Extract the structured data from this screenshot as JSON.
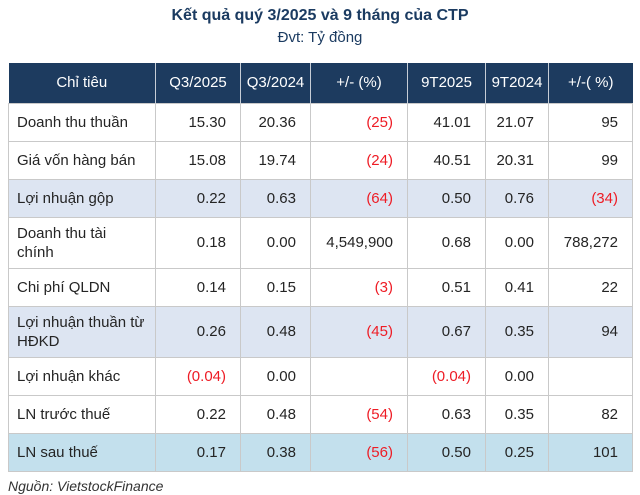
{
  "chart_data": {
    "type": "table",
    "title": "Kết quả quý 3/2025 và 9 tháng của CTP",
    "unit": "Đvt: Tỷ đồng",
    "source": "Nguồn: VietstockFinance",
    "columns": [
      "Chỉ tiêu",
      "Q3/2025",
      "Q3/2024",
      "+/- (%)",
      "9T2025",
      "9T2024",
      "+/-( %)"
    ],
    "rows": [
      {
        "label": "Doanh thu thuần",
        "values": [
          "15.30",
          "20.36",
          "(25)",
          "41.01",
          "21.07",
          "95"
        ],
        "highlight": ""
      },
      {
        "label": "Giá vốn hàng bán",
        "values": [
          "15.08",
          "19.74",
          "(24)",
          "40.51",
          "20.31",
          "99"
        ],
        "highlight": ""
      },
      {
        "label": "Lợi nhuận gộp",
        "values": [
          "0.22",
          "0.63",
          "(64)",
          "0.50",
          "0.76",
          "(34)"
        ],
        "highlight": "blue"
      },
      {
        "label": "Doanh thu tài chính",
        "values": [
          "0.18",
          "0.00",
          "4,549,900",
          "0.68",
          "0.00",
          "788,272"
        ],
        "highlight": ""
      },
      {
        "label": "Chi phí QLDN",
        "values": [
          "0.14",
          "0.15",
          "(3)",
          "0.51",
          "0.41",
          "22"
        ],
        "highlight": ""
      },
      {
        "label": "Lợi nhuận thuần từ HĐKD",
        "values": [
          "0.26",
          "0.48",
          "(45)",
          "0.67",
          "0.35",
          "94"
        ],
        "highlight": "blue"
      },
      {
        "label": "Lợi nhuận khác",
        "values": [
          "(0.04)",
          "0.00",
          "",
          "(0.04)",
          "0.00",
          ""
        ],
        "highlight": ""
      },
      {
        "label": "LN trước thuế",
        "values": [
          "0.22",
          "0.48",
          "(54)",
          "0.63",
          "0.35",
          "82"
        ],
        "highlight": ""
      },
      {
        "label": "LN sau thuế",
        "values": [
          "0.17",
          "0.38",
          "(56)",
          "0.50",
          "0.25",
          "101"
        ],
        "highlight": "cyan"
      }
    ]
  },
  "colors": {
    "header_bg": "#1d3b5f",
    "title_color": "#1b3b61",
    "negative": "#ee1c25",
    "highlight_blue": "#dde5f2",
    "highlight_cyan": "#c3e0ed",
    "border": "#c9c9c9"
  }
}
